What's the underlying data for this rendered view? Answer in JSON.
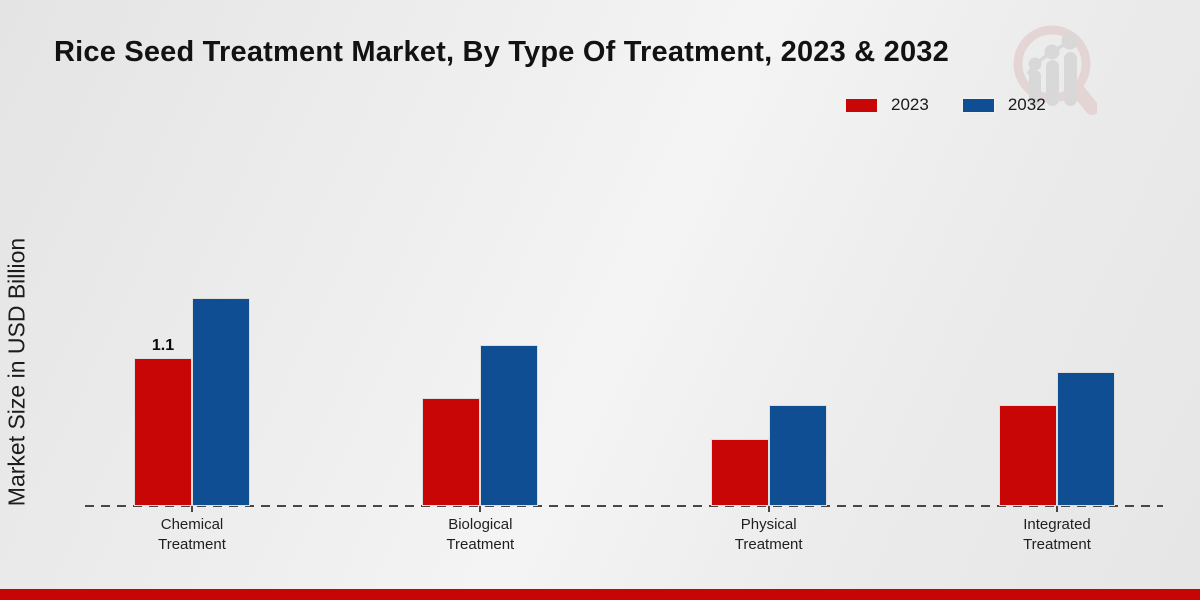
{
  "page": {
    "title": "Rice Seed Treatment Market, By Type Of Treatment, 2023 & 2032"
  },
  "legend": {
    "items": [
      {
        "label": "2023",
        "color": "#c80606"
      },
      {
        "label": "2032",
        "color": "#0f4e92"
      }
    ]
  },
  "y_axis": {
    "label": "Market Size in USD Billion"
  },
  "footer": {
    "band_color": "#c60606"
  },
  "watermark": {
    "icon": "magnifier-bar-chart-logo"
  },
  "chart_data": {
    "type": "bar",
    "title": "Rice Seed Treatment Market, By Type Of Treatment, 2023 & 2032",
    "categories": [
      "Chemical Treatment",
      "Biological Treatment",
      "Physical Treatment",
      "Integrated Treatment"
    ],
    "series": [
      {
        "name": "2023",
        "color": "#c80606",
        "values": [
          1.1,
          0.8,
          0.5,
          0.75
        ]
      },
      {
        "name": "2032",
        "color": "#0f4e92",
        "values": [
          1.55,
          1.2,
          0.75,
          1.0
        ]
      }
    ],
    "value_labels": [
      {
        "series_index": 0,
        "category_index": 0,
        "text": "1.1"
      }
    ],
    "ylabel": "Market Size in USD Billion",
    "xlabel": "",
    "ylim": [
      0,
      1.85
    ],
    "grid": false,
    "legend_position": "top-right",
    "x_axis_style": "dashed"
  }
}
